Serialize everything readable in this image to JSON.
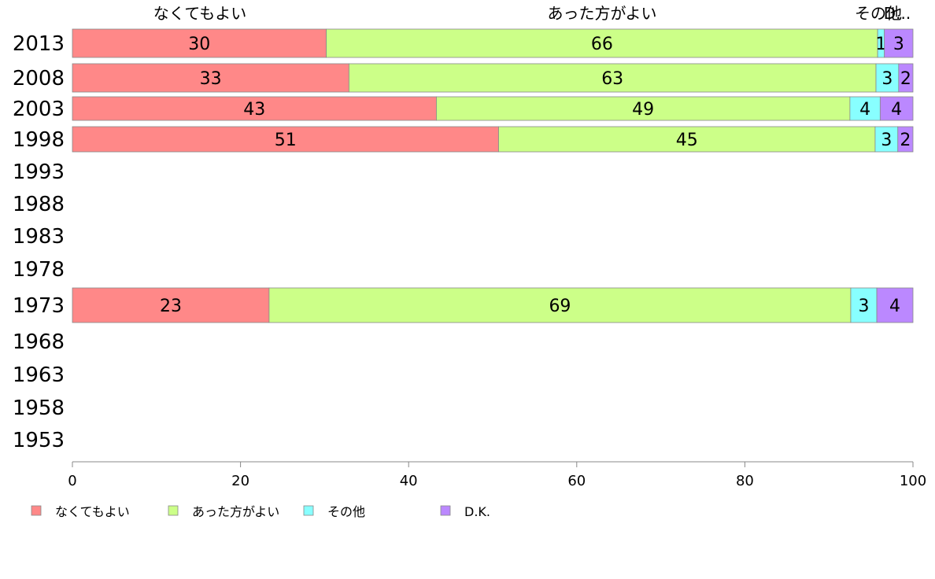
{
  "chart_data": {
    "type": "bar",
    "orientation": "horizontal",
    "stacked": true,
    "title": "",
    "xlabel": "",
    "ylabel": "",
    "xlim": [
      0,
      100
    ],
    "x_ticks": [
      "0",
      "20",
      "40",
      "60",
      "80",
      "100"
    ],
    "grid": false,
    "legend_position": "bottom-left",
    "top_labels": [
      "なくてもよい",
      "あった方がよい",
      "その他",
      "D..."
    ],
    "categories": [
      "2013",
      "2008",
      "2003",
      "1998",
      "1993",
      "1988",
      "1983",
      "1978",
      "1973",
      "1968",
      "1963",
      "1958",
      "1953"
    ],
    "series": [
      {
        "name": "なくてもよい",
        "color": "#ff8888",
        "values": [
          30.2,
          32.9,
          43.3,
          50.7,
          null,
          null,
          null,
          null,
          23.4,
          null,
          null,
          null,
          null
        ]
      },
      {
        "name": "あった方がよい",
        "color": "#ccff88",
        "values": [
          65.6,
          62.7,
          49.2,
          44.8,
          null,
          null,
          null,
          null,
          69.2,
          null,
          null,
          null,
          null
        ]
      },
      {
        "name": "その他",
        "color": "#88ffff",
        "values": [
          0.8,
          2.7,
          3.6,
          2.7,
          null,
          null,
          null,
          null,
          3.1,
          null,
          null,
          null,
          null
        ]
      },
      {
        "name": "D.K.",
        "color": "#bb88ff",
        "values": [
          3.4,
          1.7,
          3.9,
          1.8,
          null,
          null,
          null,
          null,
          4.3,
          null,
          null,
          null,
          null
        ]
      }
    ],
    "data_labels": [
      [
        "30",
        "66",
        "1",
        "3"
      ],
      [
        "33",
        "63",
        "3",
        "2"
      ],
      [
        "43",
        "49",
        "4",
        "4"
      ],
      [
        "51",
        "45",
        "3",
        "2"
      ],
      null,
      null,
      null,
      null,
      [
        "23",
        "69",
        "3",
        "4"
      ],
      null,
      null,
      null,
      null
    ]
  }
}
